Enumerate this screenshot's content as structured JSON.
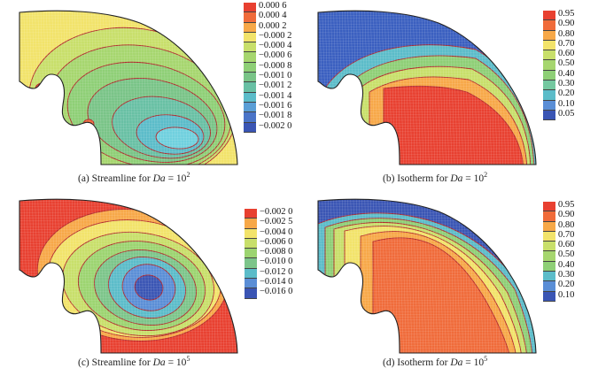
{
  "panels": [
    {
      "id": "a",
      "caption_prefix": "(a) Streamline for ",
      "caption_var": "Da",
      "caption_eq": " = 10",
      "caption_exp": "2",
      "fill_mode": "streamline_low",
      "legend": {
        "labels": [
          "0.000 6",
          "0.000 4",
          "0.000 2",
          "−0.000 2",
          "−0.000 4",
          "−0.000 6",
          "−0.000 8",
          "−0.001 0",
          "−0.001 2",
          "−0.001 4",
          "−0.001 6",
          "−0.001 8",
          "−0.002 0"
        ],
        "colors": [
          "#e84030",
          "#f06b3a",
          "#f7a848",
          "#f2e36a",
          "#c8df6a",
          "#a6d66e",
          "#8ecf76",
          "#79c487",
          "#68c0a4",
          "#5bbcc9",
          "#5a9ed6",
          "#4a74c8",
          "#3a55b4"
        ]
      }
    },
    {
      "id": "b",
      "caption_prefix": "(b) Isotherm for ",
      "caption_var": "Da",
      "caption_eq": " = 10",
      "caption_exp": "2",
      "fill_mode": "isotherm_low",
      "legend": {
        "labels": [
          "0.95",
          "0.90",
          "0.80",
          "0.70",
          "0.60",
          "0.50",
          "0.40",
          "0.30",
          "0.20",
          "0.10",
          "0.05"
        ],
        "colors": [
          "#e84030",
          "#f06b3a",
          "#f7a848",
          "#f2e36a",
          "#c8df6a",
          "#a6d66e",
          "#8ecf76",
          "#74c8a0",
          "#5bbcc9",
          "#5a8ed6",
          "#3a55b4"
        ]
      }
    },
    {
      "id": "c",
      "caption_prefix": "(c) Streamline for ",
      "caption_var": "Da",
      "caption_eq": " = 10",
      "caption_exp": "5",
      "fill_mode": "streamline_high",
      "legend": {
        "labels": [
          "−0.002 0",
          "−0.002 5",
          "−0.004 0",
          "−0.006 0",
          "−0.008 0",
          "−0.010 0",
          "−0.012 0",
          "−0.014 0",
          "−0.016 0"
        ],
        "colors": [
          "#e84030",
          "#f7a848",
          "#f2e36a",
          "#c8df6a",
          "#9cd470",
          "#7cc58a",
          "#5bbcc9",
          "#5a8ed6",
          "#3a55b4"
        ]
      }
    },
    {
      "id": "d",
      "caption_prefix": "(d) Isotherm for ",
      "caption_var": "Da",
      "caption_eq": " = 10",
      "caption_exp": "5",
      "fill_mode": "isotherm_high",
      "legend": {
        "labels": [
          "0.95",
          "0.90",
          "0.80",
          "0.70",
          "0.60",
          "0.50",
          "0.40",
          "0.30",
          "0.20",
          "0.10"
        ],
        "colors": [
          "#e84030",
          "#f06b3a",
          "#f7a848",
          "#f2e36a",
          "#c8df6a",
          "#a6d66e",
          "#8ecf76",
          "#5bbcc9",
          "#5a8ed6",
          "#3a55b4"
        ]
      }
    }
  ]
}
